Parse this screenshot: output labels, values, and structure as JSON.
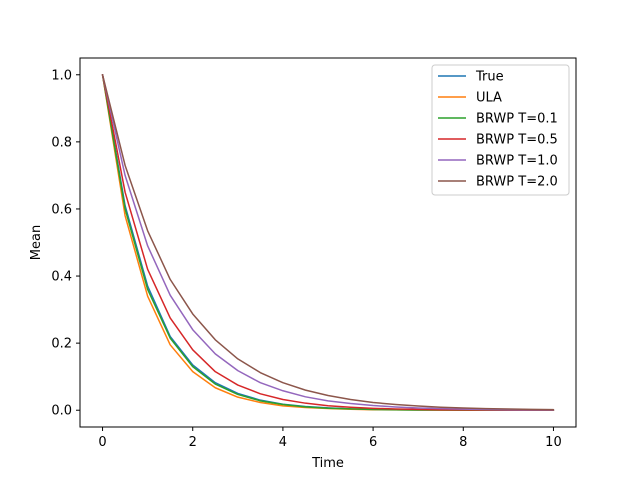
{
  "chart_data": {
    "type": "line",
    "title": "",
    "xlabel": "Time",
    "ylabel": "Mean",
    "xlim": [
      -0.5,
      10.5
    ],
    "ylim": [
      -0.05,
      1.05
    ],
    "xticks": [
      0,
      2,
      4,
      6,
      8,
      10
    ],
    "yticks": [
      0.0,
      0.2,
      0.4,
      0.6,
      0.8,
      1.0
    ],
    "xtick_labels": [
      "0",
      "2",
      "4",
      "6",
      "8",
      "10"
    ],
    "ytick_labels": [
      "0.0",
      "0.2",
      "0.4",
      "0.6",
      "0.8",
      "1.0"
    ],
    "grid": false,
    "legend_position": "top-right",
    "x": [
      0,
      0.5,
      1,
      1.5,
      2,
      2.5,
      3,
      3.5,
      4,
      4.5,
      5,
      5.5,
      6,
      6.5,
      7,
      7.5,
      8,
      8.5,
      9,
      9.5,
      10
    ],
    "series": [
      {
        "name": "True",
        "color": "#1f77b4",
        "values": [
          1.0,
          0.61,
          0.37,
          0.22,
          0.135,
          0.082,
          0.05,
          0.03,
          0.018,
          0.011,
          0.007,
          0.004,
          0.0025,
          0.0015,
          0.001,
          0.0006,
          0.0003,
          0.0002,
          0.0001,
          0.0001,
          0.0
        ]
      },
      {
        "name": "ULA",
        "color": "#ff7f0e",
        "values": [
          1.0,
          0.58,
          0.34,
          0.195,
          0.115,
          0.067,
          0.039,
          0.023,
          0.013,
          0.008,
          0.005,
          0.003,
          0.0015,
          0.001,
          0.0005,
          0.0003,
          0.0002,
          0.0001,
          0.0001,
          0.0,
          0.0
        ]
      },
      {
        "name": "BRWP T=0.1",
        "color": "#2ca02c",
        "values": [
          1.0,
          0.6,
          0.36,
          0.215,
          0.13,
          0.078,
          0.047,
          0.028,
          0.017,
          0.01,
          0.006,
          0.004,
          0.002,
          0.0013,
          0.0008,
          0.0005,
          0.0003,
          0.0002,
          0.0001,
          0.0001,
          0.0
        ]
      },
      {
        "name": "BRWP T=0.5",
        "color": "#d62728",
        "values": [
          1.0,
          0.65,
          0.42,
          0.275,
          0.18,
          0.115,
          0.075,
          0.049,
          0.032,
          0.021,
          0.0135,
          0.009,
          0.0057,
          0.0037,
          0.0024,
          0.0016,
          0.001,
          0.0007,
          0.0004,
          0.0003,
          0.0002
        ]
      },
      {
        "name": "BRWP T=1.0",
        "color": "#9467bd",
        "values": [
          1.0,
          0.7,
          0.49,
          0.343,
          0.24,
          0.168,
          0.118,
          0.082,
          0.058,
          0.04,
          0.028,
          0.02,
          0.014,
          0.0097,
          0.0068,
          0.0047,
          0.0033,
          0.0023,
          0.0016,
          0.0011,
          0.0008
        ]
      },
      {
        "name": "BRWP T=2.0",
        "color": "#8c564b",
        "values": [
          1.0,
          0.73,
          0.535,
          0.39,
          0.287,
          0.21,
          0.153,
          0.112,
          0.082,
          0.06,
          0.044,
          0.032,
          0.023,
          0.017,
          0.0125,
          0.009,
          0.0067,
          0.0049,
          0.0036,
          0.0026,
          0.0019
        ]
      }
    ]
  }
}
